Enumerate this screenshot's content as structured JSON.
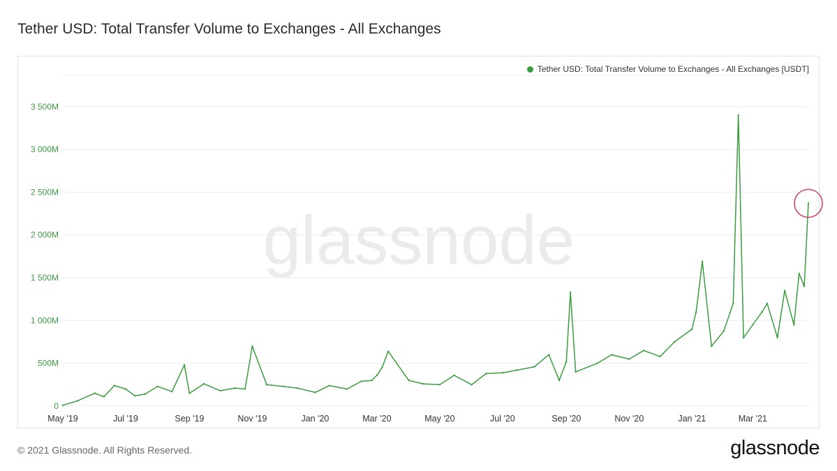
{
  "title": "Tether USD: Total Transfer Volume to Exchanges - All Exchanges",
  "footer": "© 2021 Glassnode. All Rights Reserved.",
  "brand": "glassnode",
  "watermark": "glassnode",
  "colors": {
    "series": "#3a9c3f",
    "highlight": "#c8495e",
    "grid": "#ececec",
    "tick": "#3a9c3f"
  },
  "chart_data": {
    "type": "line",
    "title": "Tether USD: Total Transfer Volume to Exchanges - All Exchanges",
    "xlabel": "",
    "ylabel": "",
    "x_range": [
      "2019-05-01",
      "2021-04-24"
    ],
    "ylim": [
      0,
      3800
    ],
    "y_unit": "M USDT",
    "y_ticks": [
      0,
      500,
      1000,
      1500,
      2000,
      2500,
      3000,
      3500
    ],
    "y_tick_labels": [
      "0",
      "500M",
      "1 000M",
      "1 500M",
      "2 000M",
      "2 500M",
      "3 000M",
      "3 500M"
    ],
    "x_tick_labels": [
      "May '19",
      "Jul '19",
      "Sep '19",
      "Nov '19",
      "Jan '20",
      "Mar '20",
      "May '20",
      "Jul '20",
      "Sep '20",
      "Nov '20",
      "Jan '21",
      "Mar '21"
    ],
    "x_tick_dates": [
      "2019-05-01",
      "2019-07-01",
      "2019-09-01",
      "2019-11-01",
      "2020-01-01",
      "2020-03-01",
      "2020-05-01",
      "2020-07-01",
      "2020-09-01",
      "2020-11-01",
      "2021-01-01",
      "2021-03-01"
    ],
    "legend_position": "top-right",
    "grid": true,
    "series": [
      {
        "name": "Tether USD: Total Transfer Volume to Exchanges - All Exchanges [USDT]",
        "x": [
          "2019-05-01",
          "2019-05-15",
          "2019-06-01",
          "2019-06-10",
          "2019-06-20",
          "2019-07-01",
          "2019-07-10",
          "2019-07-20",
          "2019-08-01",
          "2019-08-15",
          "2019-08-27",
          "2019-09-01",
          "2019-09-15",
          "2019-10-01",
          "2019-10-15",
          "2019-10-25",
          "2019-11-01",
          "2019-11-15",
          "2019-12-01",
          "2019-12-15",
          "2020-01-01",
          "2020-01-15",
          "2020-02-01",
          "2020-02-15",
          "2020-02-25",
          "2020-03-01",
          "2020-03-06",
          "2020-03-12",
          "2020-04-01",
          "2020-04-15",
          "2020-05-01",
          "2020-05-15",
          "2020-06-01",
          "2020-06-15",
          "2020-07-01",
          "2020-07-15",
          "2020-08-01",
          "2020-08-15",
          "2020-08-25",
          "2020-09-01",
          "2020-09-05",
          "2020-09-10",
          "2020-10-01",
          "2020-10-15",
          "2020-11-01",
          "2020-11-15",
          "2020-12-01",
          "2020-12-15",
          "2021-01-01",
          "2021-01-05",
          "2021-01-11",
          "2021-01-20",
          "2021-02-01",
          "2021-02-10",
          "2021-02-15",
          "2021-02-20",
          "2021-03-01",
          "2021-03-10",
          "2021-03-15",
          "2021-03-25",
          "2021-04-01",
          "2021-04-10",
          "2021-04-15",
          "2021-04-20",
          "2021-04-24"
        ],
        "values": [
          10,
          60,
          150,
          110,
          240,
          200,
          120,
          140,
          230,
          170,
          480,
          150,
          260,
          180,
          210,
          200,
          700,
          250,
          230,
          210,
          160,
          240,
          200,
          290,
          300,
          360,
          450,
          640,
          300,
          260,
          250,
          360,
          250,
          380,
          390,
          420,
          460,
          600,
          300,
          520,
          1330,
          400,
          500,
          600,
          550,
          650,
          580,
          750,
          900,
          1100,
          1690,
          700,
          880,
          1200,
          3400,
          800,
          950,
          1100,
          1200,
          800,
          1350,
          950,
          1550,
          1400,
          2370
        ]
      }
    ]
  }
}
